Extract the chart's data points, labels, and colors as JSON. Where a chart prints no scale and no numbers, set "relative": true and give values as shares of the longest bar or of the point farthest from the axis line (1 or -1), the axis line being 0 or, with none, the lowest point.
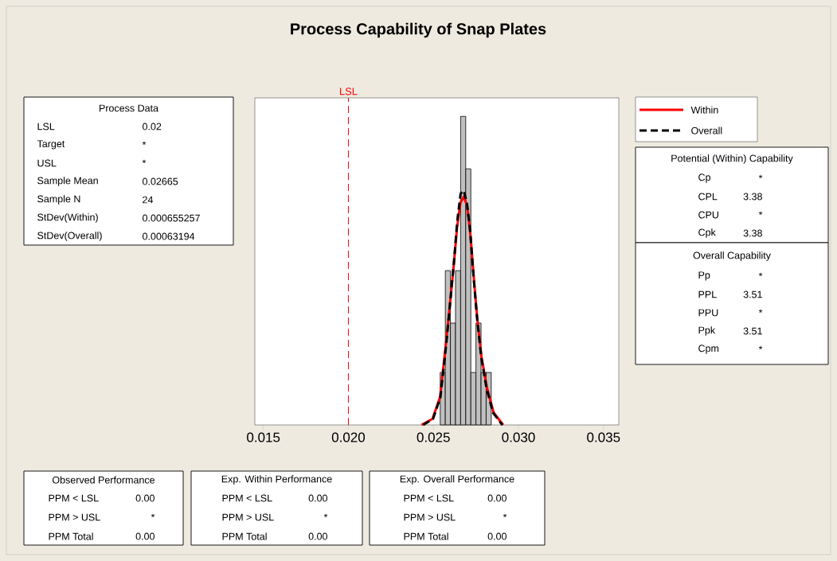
{
  "chart_data": {
    "type": "histogram",
    "title": "Process Capability of Snap Plates",
    "bins": [
      0.0254,
      0.0257,
      0.026,
      0.0263,
      0.0266,
      0.0269,
      0.0272,
      0.0275,
      0.0278,
      0.0281,
      0.0284
    ],
    "values": [
      0.17,
      0.5,
      0.33,
      0.5,
      1,
      0.83,
      0.17,
      0.33,
      0.17,
      0.17
    ],
    "color": "#c0c0c0",
    "relative": true,
    "xlim": [
      0.0145,
      0.0359
    ],
    "xticks": [
      0.015,
      {
        "value": 0.02,
        "label": "0.020"
      },
      0.025,
      {
        "value": 0.03,
        "label": "0.030"
      },
      0.035
    ],
    "series": [
      {
        "name": "Within",
        "type": "line",
        "color": "#ff0000",
        "line_style": "solid",
        "x": [
          0.0243,
          0.02495,
          0.02539,
          0.02573,
          0.02597,
          0.0262,
          0.02639,
          0.02659,
          0.02679,
          0.02698,
          0.02717,
          0.02737,
          0.02757,
          0.02783,
          0.02815,
          0.02854,
          0.0291
        ],
        "values": [
          0,
          0.02,
          0.09,
          0.26,
          0.39,
          0.52,
          0.64,
          0.72,
          0.74,
          0.71,
          0.62,
          0.48,
          0.35,
          0.22,
          0.12,
          0.04,
          0
        ]
      },
      {
        "name": "Overall",
        "type": "line",
        "color": "#000000",
        "line_style": "dashed",
        "x": [
          0.0244,
          0.02498,
          0.02541,
          0.02575,
          0.02599,
          0.02621,
          0.0264,
          0.0266,
          0.02678,
          0.02697,
          0.02716,
          0.02736,
          0.02756,
          0.02781,
          0.02812,
          0.0285,
          0.02905
        ],
        "values": [
          0,
          0.02,
          0.09,
          0.26,
          0.4,
          0.53,
          0.66,
          0.75,
          0.76,
          0.72,
          0.63,
          0.48,
          0.35,
          0.22,
          0.12,
          0.04,
          0
        ]
      }
    ],
    "ref_lines": [
      {
        "axis": "x",
        "value": 0.02,
        "label": "LSL",
        "color": "#ff0000",
        "line_style": "dashed"
      }
    ],
    "legend": "right",
    "annotations": [
      "Process Data",
      "LSL",
      "0.02",
      "Target",
      "*",
      "USL",
      "*",
      "Sample Mean",
      "0.02665",
      "Sample N",
      "24",
      "StDev(Within)",
      "0.000655257",
      "StDev(Overall)",
      "0.00063194",
      "Potential (Within) Capability",
      "Cp",
      "*",
      "CPL",
      "3.38",
      "CPU",
      "*",
      "Cpk",
      "3.38",
      "Overall Capability",
      "Pp",
      "*",
      "PPL",
      "3.51",
      "PPU",
      "*",
      "Ppk",
      "3.51",
      "Cpm",
      "*",
      "Observed Performance",
      "PPM < LSL",
      "0.00",
      "PPM > USL",
      "*",
      "PPM Total",
      "0.00",
      "Exp. Within Performance",
      "PPM < LSL",
      "0.00",
      "PPM > USL",
      "*",
      "PPM Total",
      "0.00",
      "Exp. Overall Performance",
      "PPM < LSL",
      "0.00",
      "PPM > USL",
      "*",
      "PPM Total",
      "0.00"
    ]
  }
}
